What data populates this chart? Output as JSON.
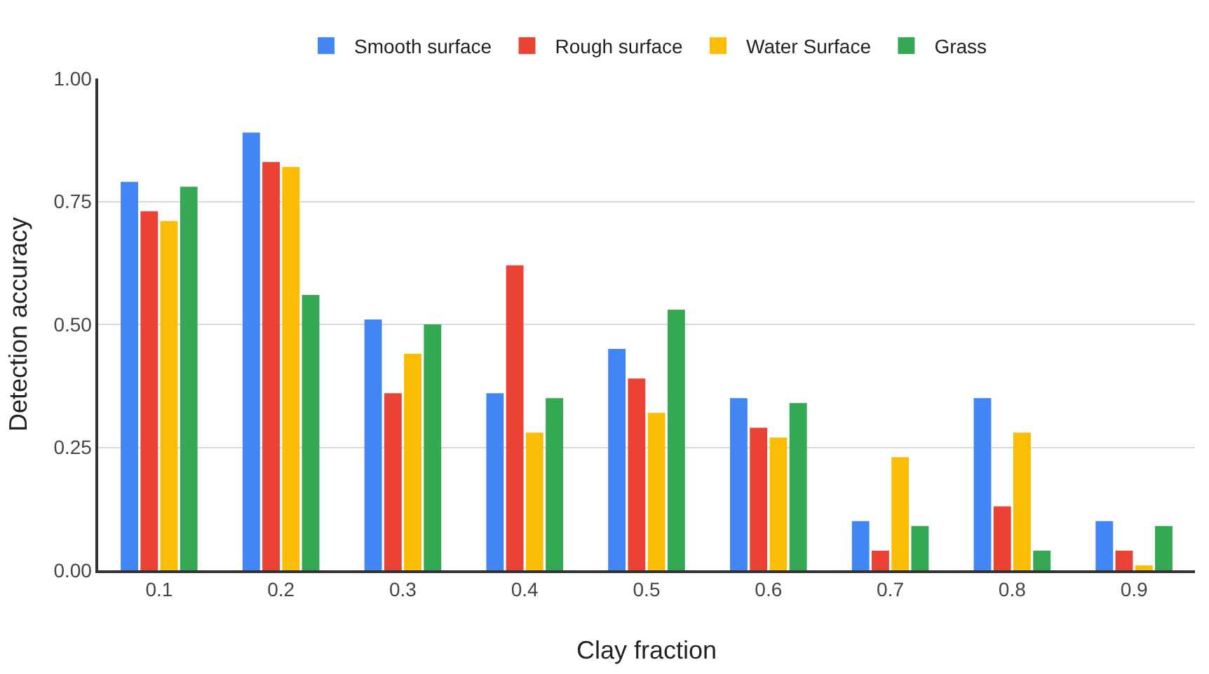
{
  "chart_data": {
    "type": "bar",
    "xlabel": "Clay fraction",
    "ylabel": "Detection accuracy",
    "categories": [
      "0.1",
      "0.2",
      "0.3",
      "0.4",
      "0.5",
      "0.6",
      "0.7",
      "0.8",
      "0.9"
    ],
    "series": [
      {
        "name": "Smooth surface",
        "color": "#4285f4",
        "values": [
          0.79,
          0.89,
          0.51,
          0.36,
          0.45,
          0.35,
          0.1,
          0.35,
          0.1
        ]
      },
      {
        "name": "Rough surface",
        "color": "#ea4335",
        "values": [
          0.73,
          0.83,
          0.36,
          0.62,
          0.39,
          0.29,
          0.04,
          0.13,
          0.04
        ]
      },
      {
        "name": "Water Surface",
        "color": "#fbbc04",
        "values": [
          0.71,
          0.82,
          0.44,
          0.28,
          0.32,
          0.27,
          0.23,
          0.28,
          0.01
        ]
      },
      {
        "name": "Grass",
        "color": "#34a853",
        "values": [
          0.78,
          0.56,
          0.5,
          0.35,
          0.53,
          0.34,
          0.09,
          0.04,
          0.09
        ]
      }
    ],
    "ylim": [
      0,
      1
    ],
    "yticks": [
      {
        "value": 0,
        "label": "0.00"
      },
      {
        "value": 0.25,
        "label": "0.25"
      },
      {
        "value": 0.5,
        "label": "0.50"
      },
      {
        "value": 0.75,
        "label": "0.75"
      },
      {
        "value": 1,
        "label": "1.00"
      }
    ],
    "grid": "y",
    "legend": "top"
  }
}
